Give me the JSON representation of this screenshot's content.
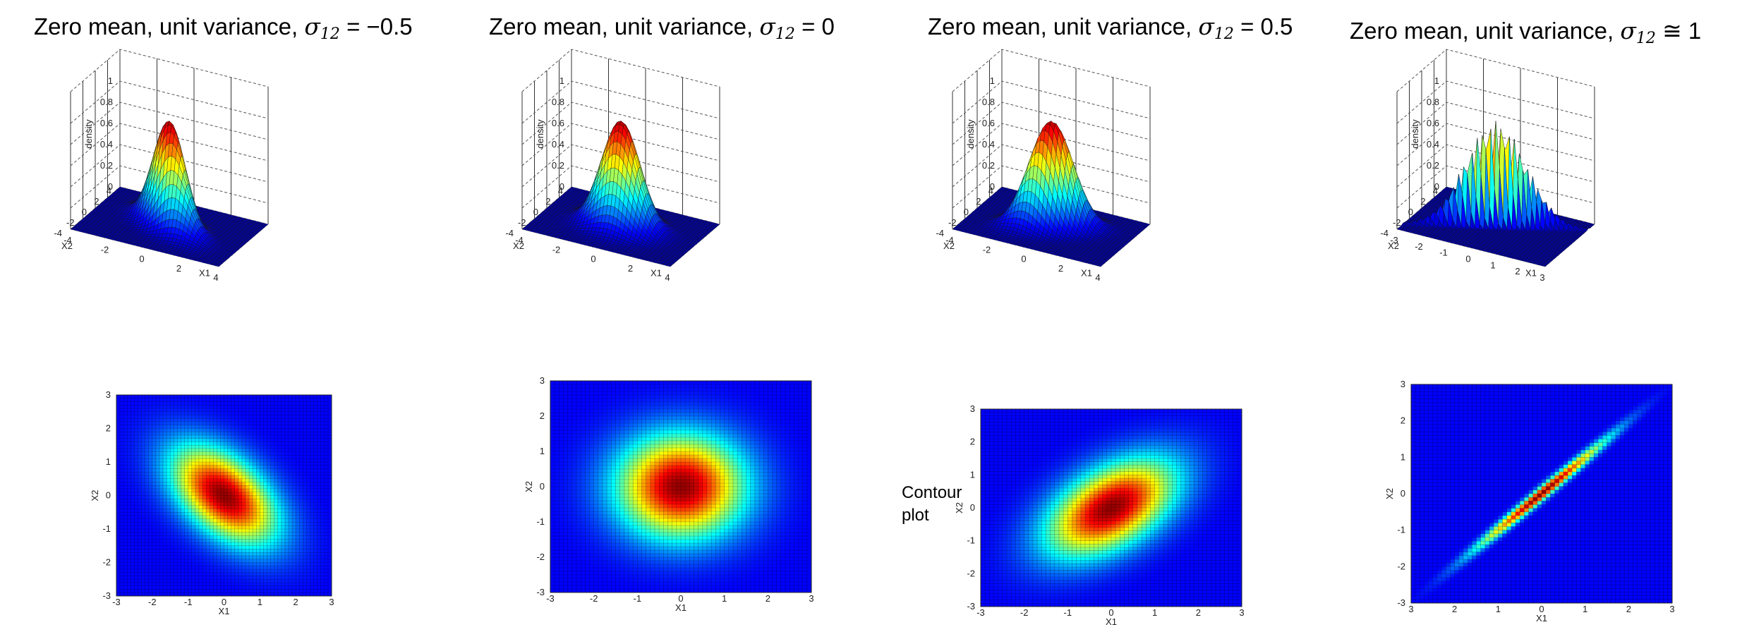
{
  "chart_data": [
    {
      "type": "surface",
      "title_prefix": "Zero mean, unit variance,",
      "title_symbol": "σ",
      "title_subscript": "12",
      "title_relation": "=",
      "title_value": "−0.5",
      "rho": -0.5,
      "surface": {
        "zlabel": "density",
        "xlabel": "X1",
        "ylabel": "X2",
        "xticks": [
          "-4",
          "-2",
          "0",
          "2",
          "4"
        ],
        "yticks": [
          "-4",
          "-2",
          "0",
          "2",
          "4"
        ],
        "zticks": [
          "0",
          "0.2",
          "0.4",
          "0.6",
          "0.8",
          "1"
        ],
        "xlim": [
          -4,
          4
        ],
        "ylim": [
          -4,
          4
        ],
        "zlim": [
          0,
          1
        ]
      },
      "contour": {
        "xlabel": "X1",
        "ylabel": "X2",
        "xticks": [
          "-3",
          "-2",
          "-1",
          "0",
          "1",
          "2",
          "3"
        ],
        "yticks": [
          "3",
          "2",
          "1",
          "0",
          "-1",
          "-2",
          "-3"
        ]
      }
    },
    {
      "type": "surface",
      "title_prefix": "Zero mean, unit variance,",
      "title_symbol": "σ",
      "title_subscript": "12",
      "title_relation": "=",
      "title_value": "0",
      "rho": 0,
      "surface": {
        "zlabel": "density",
        "xlabel": "X1",
        "ylabel": "X2",
        "xticks": [
          "-4",
          "-2",
          "0",
          "2",
          "4"
        ],
        "yticks": [
          "-4",
          "-2",
          "0",
          "2",
          "4"
        ],
        "zticks": [
          "0",
          "0.2",
          "0.4",
          "0.6",
          "0.8",
          "1"
        ],
        "xlim": [
          -4,
          4
        ],
        "ylim": [
          -4,
          4
        ],
        "zlim": [
          0,
          1
        ]
      },
      "contour": {
        "xlabel": "X1",
        "ylabel": "X2",
        "xticks": [
          "-3",
          "-2",
          "-1",
          "0",
          "1",
          "2",
          "3"
        ],
        "yticks": [
          "3",
          "2",
          "1",
          "0",
          "-1",
          "-2",
          "-3"
        ]
      }
    },
    {
      "type": "surface",
      "title_prefix": "Zero mean, unit variance,",
      "title_symbol": "σ",
      "title_subscript": "12",
      "title_relation": "=",
      "title_value": "0.5",
      "rho": 0.5,
      "surface": {
        "zlabel": "density",
        "xlabel": "X1",
        "ylabel": "X2",
        "xticks": [
          "-4",
          "-2",
          "0",
          "2",
          "4"
        ],
        "yticks": [
          "-4",
          "-2",
          "0",
          "2",
          "4"
        ],
        "zticks": [
          "0",
          "0.2",
          "0.4",
          "0.6",
          "0.8",
          "1"
        ],
        "xlim": [
          -4,
          4
        ],
        "ylim": [
          -4,
          4
        ],
        "zlim": [
          0,
          1
        ]
      },
      "contour": {
        "xlabel": "X1",
        "ylabel": "X2",
        "xticks": [
          "-3",
          "-2",
          "-1",
          "0",
          "1",
          "2",
          "3"
        ],
        "yticks": [
          "3",
          "2",
          "1",
          "0",
          "-1",
          "-2",
          "-3"
        ]
      }
    },
    {
      "type": "surface",
      "title_prefix": "Zero mean, unit variance,",
      "title_symbol": "σ",
      "title_subscript": "12",
      "title_relation": "≅",
      "title_value": "1",
      "rho": 0.99,
      "surface": {
        "zlabel": "density",
        "xlabel": "X1",
        "ylabel": "X2",
        "xticks": [
          "-3",
          "-2",
          "-1",
          "0",
          "1",
          "2",
          "3"
        ],
        "yticks": [
          "-4",
          "-2",
          "0",
          "2",
          "4"
        ],
        "zticks": [
          "0",
          "0.2",
          "0.4",
          "0.6",
          "0.8",
          "1"
        ],
        "xlim": [
          -3,
          3
        ],
        "ylim": [
          -4,
          4
        ],
        "zlim": [
          0,
          1
        ]
      },
      "contour": {
        "xlabel": "X1",
        "ylabel": "X2",
        "xticks": [
          "3",
          "2",
          "1",
          "0",
          "1",
          "2",
          "3"
        ],
        "yticks": [
          "3",
          "2",
          "1",
          "0",
          "-1",
          "-2",
          "-3"
        ]
      }
    }
  ],
  "side_note": {
    "line1": "Contour",
    "line2": "plot"
  }
}
